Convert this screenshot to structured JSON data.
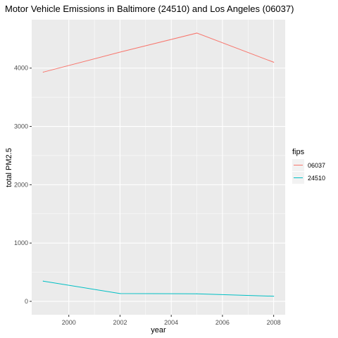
{
  "chart_data": {
    "type": "line",
    "title": "Motor Vehicle Emissions in Baltimore (24510) and Los Angeles (06037)",
    "xlabel": "year",
    "ylabel": "total PM2.5",
    "x": [
      1999,
      2002,
      2005,
      2008
    ],
    "xlim": [
      1998.55,
      2008.45
    ],
    "ylim": [
      -230,
      4830
    ],
    "xticks": [
      2000,
      2002,
      2004,
      2006,
      2008
    ],
    "xtick_labels": [
      "2000",
      "2002",
      "2004",
      "2006",
      "2008"
    ],
    "yticks": [
      0,
      1000,
      2000,
      3000,
      4000
    ],
    "ytick_labels": [
      "0",
      "1000",
      "2000",
      "3000",
      "4000"
    ],
    "grid": true,
    "legend_title": "fips",
    "legend_position": "right",
    "series": [
      {
        "name": "06037",
        "color": "#F8766D",
        "values": [
          3931,
          4274,
          4601,
          4101
        ]
      },
      {
        "name": "24510",
        "color": "#00BFC4",
        "values": [
          347,
          134,
          130,
          88
        ]
      }
    ]
  }
}
